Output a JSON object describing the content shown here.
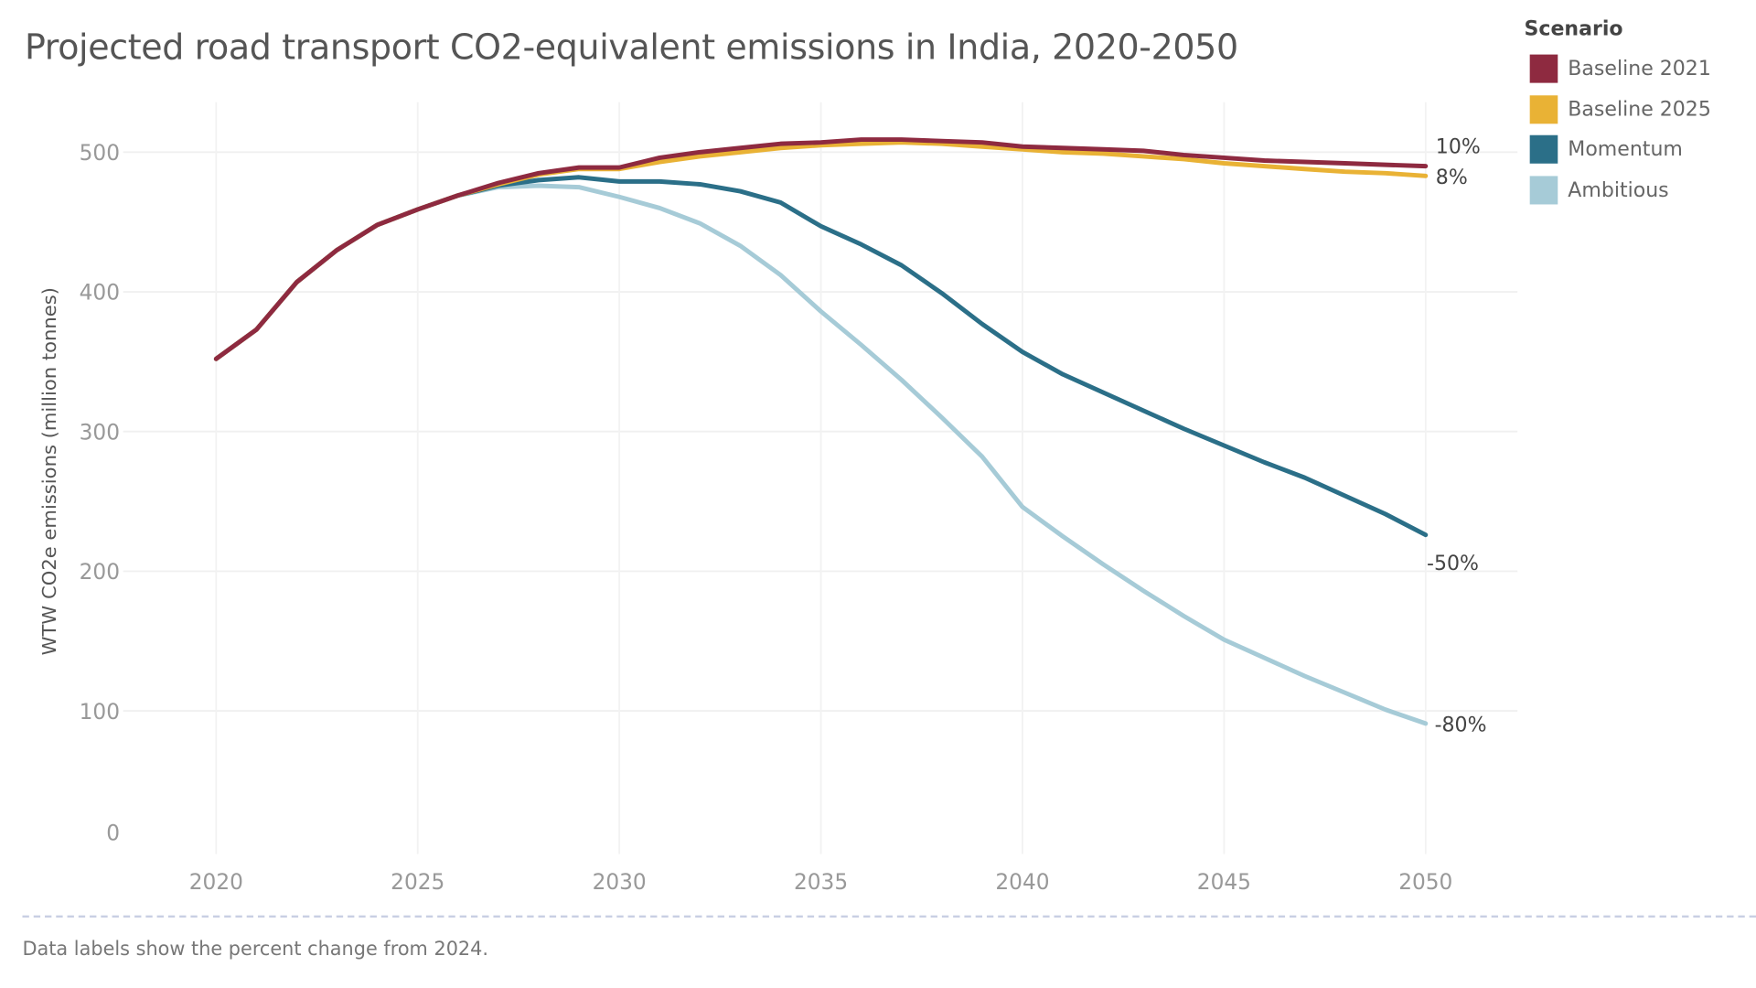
{
  "title": "Projected road transport CO2-equivalent emissions in India, 2020-2050",
  "footer_note": "Data labels show the percent change from 2024.",
  "legend": {
    "title": "Scenario",
    "items": [
      {
        "label": "Baseline 2021",
        "color": "#8e2a40"
      },
      {
        "label": "Baseline 2025",
        "color": "#e9b235"
      },
      {
        "label": "Momentum",
        "color": "#2b6f88"
      },
      {
        "label": "Ambitious",
        "color": "#a6cbd7"
      }
    ]
  },
  "chart_data": {
    "type": "line",
    "title": "Projected road transport CO2-equivalent emissions in India, 2020-2050",
    "xlabel": "",
    "ylabel": "WTW CO2e emissions (million tonnes)",
    "xlim": [
      2020,
      2050
    ],
    "ylim": [
      0,
      500
    ],
    "x_ticks": [
      "2020",
      "2025",
      "2030",
      "2035",
      "2040",
      "2045",
      "2050"
    ],
    "y_ticks": [
      "0",
      "100",
      "200",
      "300",
      "400",
      "500"
    ],
    "grid": true,
    "legend_position": "top-right",
    "x": [
      2020,
      2021,
      2022,
      2023,
      2024,
      2025,
      2026,
      2027,
      2028,
      2029,
      2030,
      2031,
      2032,
      2033,
      2034,
      2035,
      2036,
      2037,
      2038,
      2039,
      2040,
      2041,
      2042,
      2043,
      2044,
      2045,
      2046,
      2047,
      2048,
      2049,
      2050
    ],
    "series": [
      {
        "name": "Baseline 2021",
        "color": "#8e2a40",
        "end_label": "10%",
        "values": [
          352,
          373,
          407,
          430,
          448,
          459,
          469,
          478,
          485,
          489,
          489,
          496,
          500,
          503,
          506,
          507,
          509,
          509,
          508,
          507,
          504,
          503,
          502,
          501,
          498,
          496,
          494,
          493,
          492,
          491,
          490
        ]
      },
      {
        "name": "Baseline 2025",
        "color": "#e9b235",
        "end_label": "8%",
        "values": [
          352,
          373,
          407,
          430,
          448,
          459,
          469,
          477,
          484,
          488,
          488,
          493,
          497,
          500,
          503,
          505,
          506,
          507,
          506,
          504,
          502,
          500,
          499,
          497,
          495,
          492,
          490,
          488,
          486,
          485,
          483
        ]
      },
      {
        "name": "Momentum",
        "color": "#2b6f88",
        "end_label": "-50%",
        "values": [
          352,
          373,
          407,
          430,
          448,
          459,
          469,
          476,
          480,
          482,
          479,
          479,
          477,
          472,
          464,
          447,
          434,
          419,
          399,
          377,
          357,
          341,
          328,
          315,
          302,
          290,
          278,
          267,
          254,
          241,
          226
        ]
      },
      {
        "name": "Ambitious",
        "color": "#a6cbd7",
        "end_label": "-80%",
        "values": [
          352,
          373,
          407,
          430,
          448,
          459,
          469,
          475,
          476,
          475,
          468,
          460,
          449,
          433,
          412,
          386,
          362,
          337,
          310,
          282,
          246,
          225,
          205,
          186,
          168,
          151,
          138,
          125,
          113,
          101,
          91
        ]
      }
    ]
  }
}
